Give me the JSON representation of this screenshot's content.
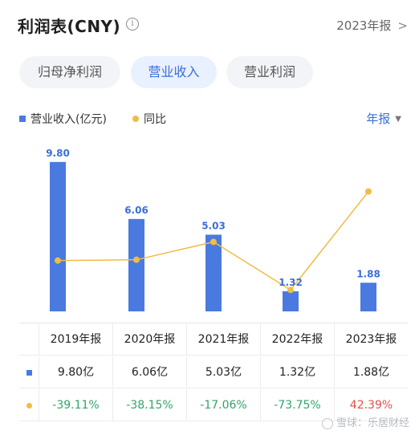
{
  "header": {
    "title": "利润表(CNY)",
    "info_symbol": "i",
    "report_label": "2023年报",
    "chevron": ">"
  },
  "tabs": [
    {
      "label": "归母净利润",
      "active": false
    },
    {
      "label": "营业收入",
      "active": true
    },
    {
      "label": "营业利润",
      "active": false
    }
  ],
  "legend": {
    "bar_label": "营业收入(亿元)",
    "line_label": "同比"
  },
  "period_selector": {
    "label": "年报",
    "arrow": "▼"
  },
  "colors": {
    "bar": "#4a7ae0",
    "line": "#f0bc45",
    "positive": "#e0524a",
    "negative": "#32a36b",
    "accent": "#3a6fd8"
  },
  "chart_data": {
    "type": "bar",
    "categories": [
      "2019年报",
      "2020年报",
      "2021年报",
      "2022年报",
      "2023年报"
    ],
    "series": [
      {
        "name": "营业收入(亿元)",
        "type": "bar",
        "values": [
          9.8,
          6.06,
          5.03,
          1.32,
          1.88
        ],
        "labels": [
          "9.80",
          "6.06",
          "5.03",
          "1.32",
          "1.88"
        ]
      },
      {
        "name": "同比",
        "type": "line",
        "values": [
          -39.11,
          -38.15,
          -17.06,
          -73.75,
          42.39
        ]
      }
    ],
    "ylim_bar": [
      0,
      10
    ],
    "ylim_line": [
      -100,
      60
    ],
    "grid": false
  },
  "table": {
    "headers": [
      "2019年报",
      "2020年报",
      "2021年报",
      "2022年报",
      "2023年报"
    ],
    "revenue": [
      "9.80亿",
      "6.06亿",
      "5.03亿",
      "1.32亿",
      "1.88亿"
    ],
    "yoy": [
      "-39.11%",
      "-38.15%",
      "-17.06%",
      "-73.75%",
      "42.39%"
    ],
    "yoy_sign": [
      "neg",
      "neg",
      "neg",
      "neg",
      "pos"
    ]
  },
  "watermark": {
    "text": "雪球：乐居财经"
  }
}
